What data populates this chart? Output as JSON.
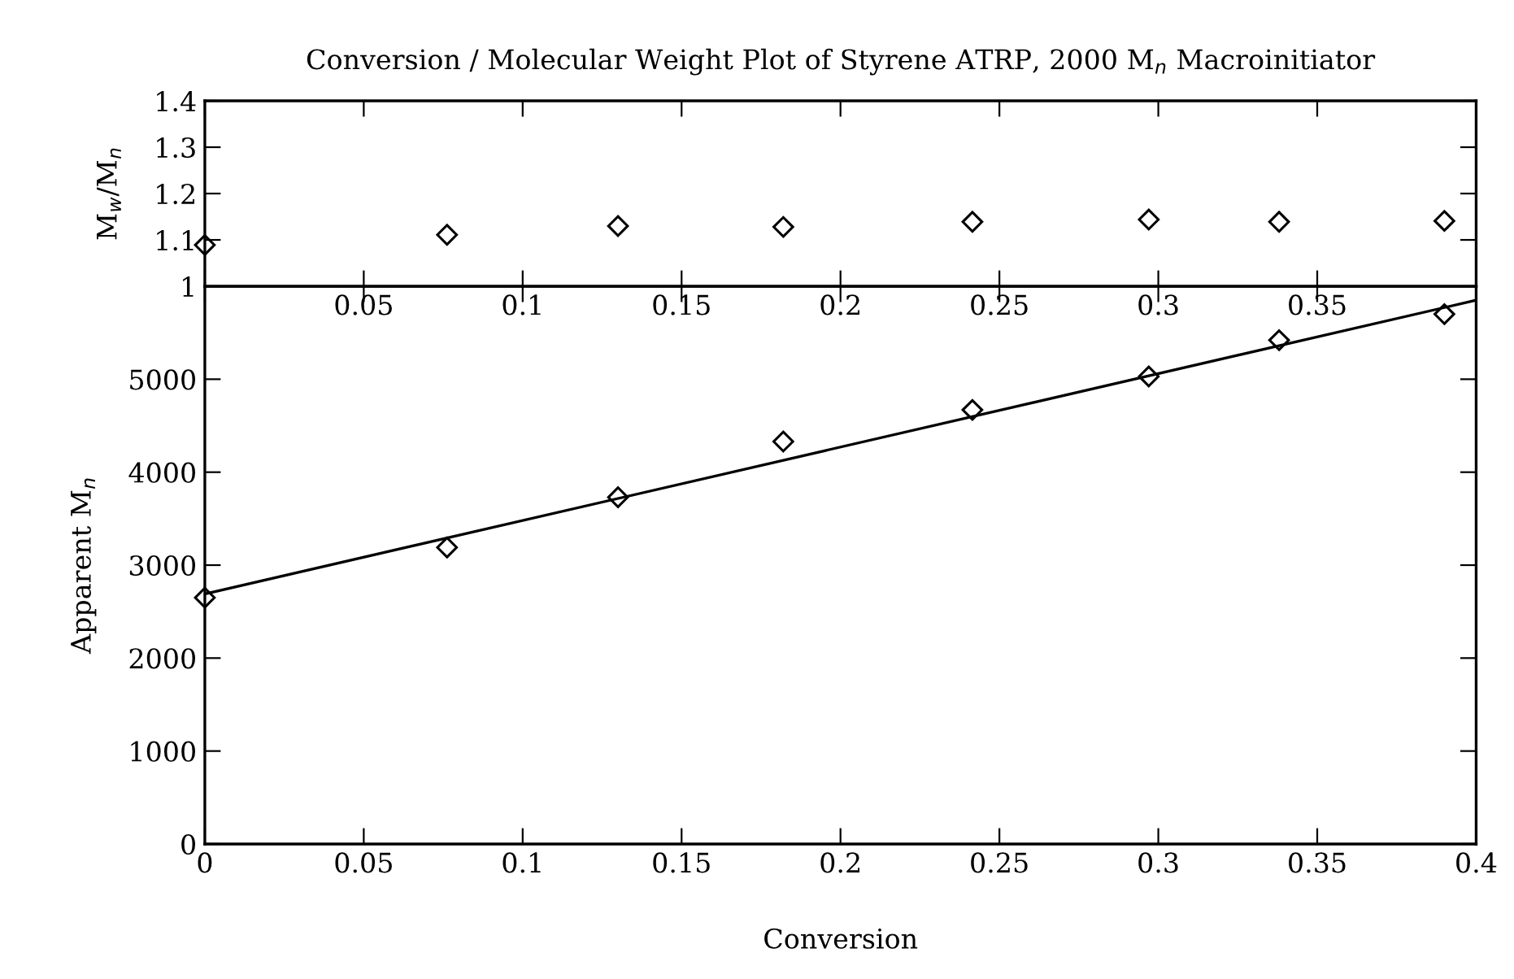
{
  "chart_data": [
    {
      "type": "scatter",
      "title": "Conversion / Molecular Weight Plot of Styrene ATRP, 2000 M$_{n}$ Macroinitiator",
      "ylabel": "M$_{w}$/M$_{n}$",
      "marker": "diamond",
      "grid": false,
      "legend": false,
      "x": [
        0,
        0.0762,
        0.13,
        0.182,
        0.2415,
        0.297,
        0.338,
        0.39
      ],
      "series": [
        {
          "color": "#000000",
          "values": [
            1.089,
            1.111,
            1.13,
            1.128,
            1.139,
            1.144,
            1.139,
            1.141
          ]
        }
      ],
      "xlim": [
        0,
        0.4
      ],
      "xticks": [
        {
          "value": 0,
          "label": null
        },
        0.05,
        0.1,
        0.15,
        0.2,
        0.25,
        0.3,
        0.35,
        {
          "value": 0.4,
          "label": null
        }
      ],
      "ylim": [
        1,
        1.4
      ],
      "yticks": [
        1,
        1.1,
        1.2,
        1.3,
        1.4
      ]
    },
    {
      "type": "scatter",
      "xlabel": "Conversion",
      "ylabel": "Apparent M$_{n}$",
      "marker": "diamond",
      "grid": false,
      "legend": false,
      "x": [
        0,
        0.0762,
        0.13,
        0.182,
        0.2415,
        0.297,
        0.338,
        0.39
      ],
      "series": [
        {
          "color": "#000000",
          "values": [
            2650,
            3190,
            3730,
            4330,
            4670,
            5030,
            5420,
            5700
          ]
        },
        {
          "type": "line",
          "color": "#000000",
          "x": [
            0,
            0.4
          ],
          "values": [
            2690,
            5850
          ],
          "marker": "none"
        }
      ],
      "xlim": [
        0,
        0.4
      ],
      "xticks": [
        0,
        0.05,
        0.1,
        0.15,
        0.2,
        0.25,
        0.3,
        0.35,
        0.4
      ],
      "ylim": [
        0,
        6000
      ],
      "yticks": [
        0,
        1000,
        2000,
        3000,
        4000,
        5000
      ]
    }
  ]
}
